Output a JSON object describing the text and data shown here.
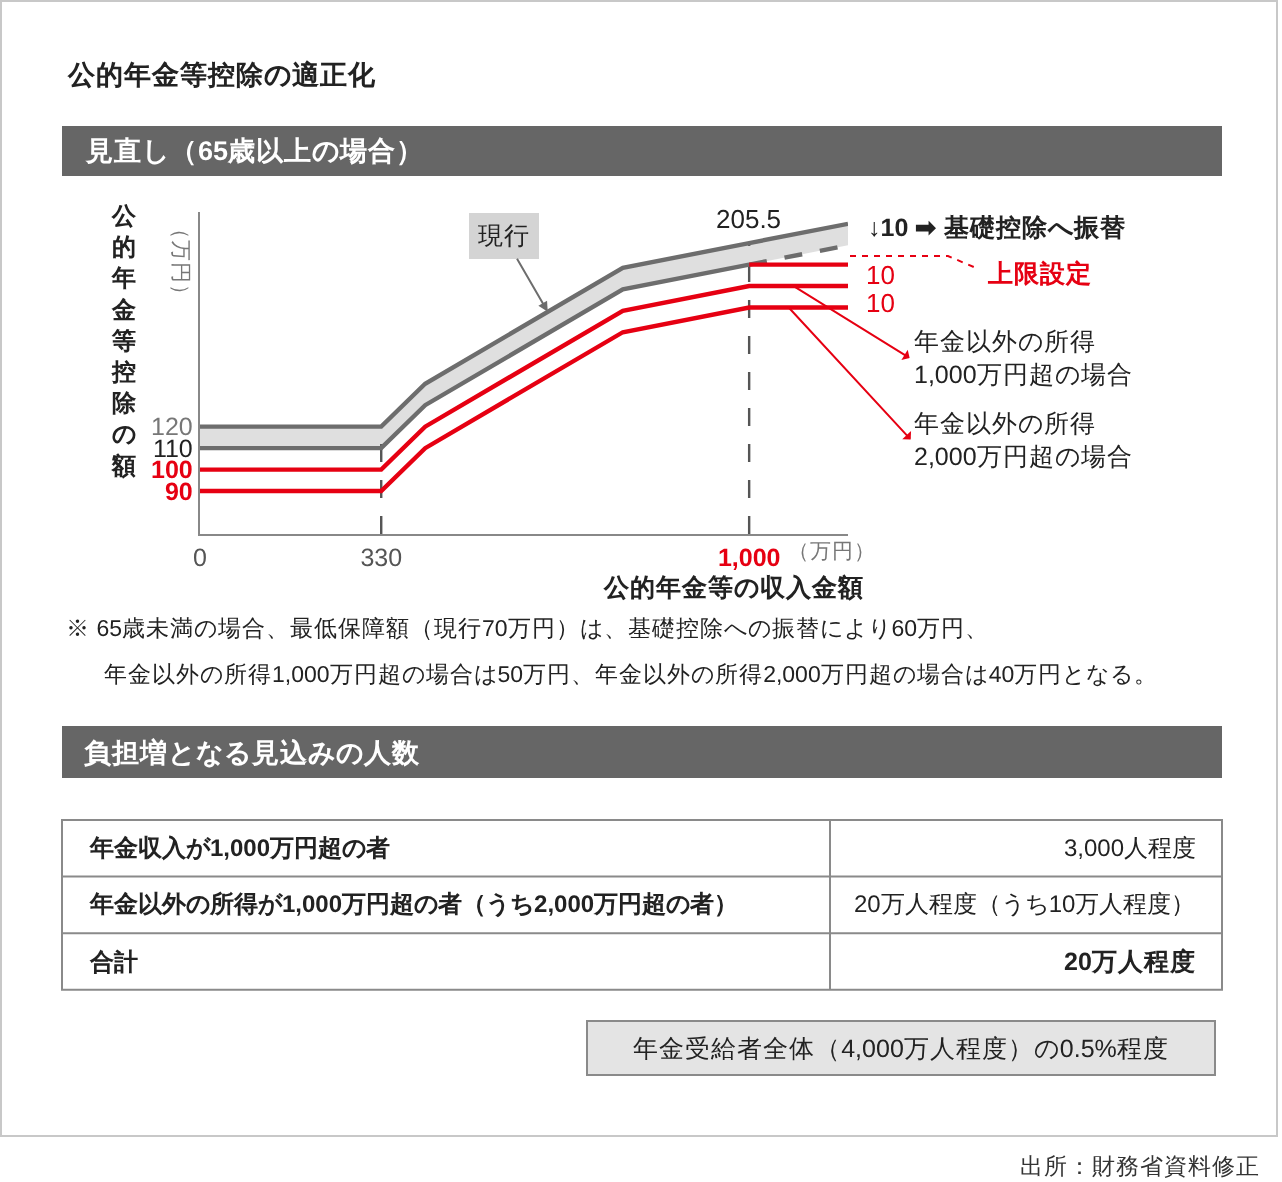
{
  "chart_data": [
    {
      "type": "line",
      "title": "公的年金等控除の適正化",
      "subtitle": "見直し（65歳以上の場合）",
      "xlabel": "公的年金等の収入金額",
      "ylabel": "公的年金等控除の額",
      "x": [
        0,
        330,
        410,
        770,
        1000,
        1180
      ],
      "xlim": [
        0,
        1180
      ],
      "ylim": [
        70,
        220
      ],
      "xticks": [
        0,
        330,
        {
          "value": 1000,
          "label": "1,000"
        }
      ],
      "yticks": [
        90,
        100,
        110,
        120
      ],
      "line_style": "solid",
      "legend": "right",
      "series": [
        {
          "name": "現行",
          "color": "#6d6d6d",
          "values": [
            120,
            120,
            140,
            194,
            205.5,
            214.5
          ],
          "lower": [
            110,
            110,
            130,
            184,
            195.5,
            204.5
          ],
          "upper": [
            120,
            120,
            140,
            194,
            205.5,
            214.5
          ]
        },
        {
          "color": "#6d6d6d",
          "x": [
            0,
            330,
            410,
            770,
            1000
          ],
          "values": [
            110,
            110,
            130,
            184,
            195.5
          ]
        },
        {
          "color": "#6d6d6d",
          "x": [
            1000,
            1180
          ],
          "values": [
            195.5,
            204.5
          ],
          "line_style": "dashed"
        },
        {
          "color": "#e60012",
          "x": [
            1000,
            1180
          ],
          "values": [
            195.5,
            195.5
          ]
        },
        {
          "name": "年金以外の所得\n1,000万円超の場合",
          "color": "#e60012",
          "values": [
            100,
            100,
            120,
            174,
            185.5,
            185.5
          ]
        },
        {
          "name": "年金以外の所得\n2,000万円超の場合",
          "color": "#e60012",
          "values": [
            90,
            90,
            110,
            164,
            175.5,
            175.5
          ]
        }
      ],
      "ref_lines": [
        {
          "axis": "x",
          "value": 330,
          "color": "#555555",
          "line_style": "dashed"
        },
        {
          "axis": "x",
          "value": 1000,
          "color": "#555555",
          "line_style": "dashed"
        }
      ],
      "annotations": [
        {
          "text": "205.5",
          "x": 1000,
          "y": 205.5
        },
        "10",
        "10",
        "↓10 ➡ 基礎控除へ振替",
        "上限設定",
        "（万円）",
        "（万円）",
        "※ 65歳未満の場合、最低保障額（現行70万円）は、基礎控除への振替により60万円、",
        "年金以外の所得1,000万円超の場合は50万円、年金以外の所得2,000万円超の場合は40万円となる。"
      ]
    },
    {
      "type": "other",
      "title": "負担増となる見込みの人数",
      "annotations": [
        "年金収入が1,000万円超の者",
        "3,000人程度",
        "年金以外の所得が1,000万円超の者（うち2,000万円超の者）",
        "20万人程度（うち10万人程度）",
        "合計",
        "20万人程度",
        "年金受給者全体（4,000万人程度）の0.5%程度",
        "出所：財務省資料修正"
      ]
    }
  ]
}
